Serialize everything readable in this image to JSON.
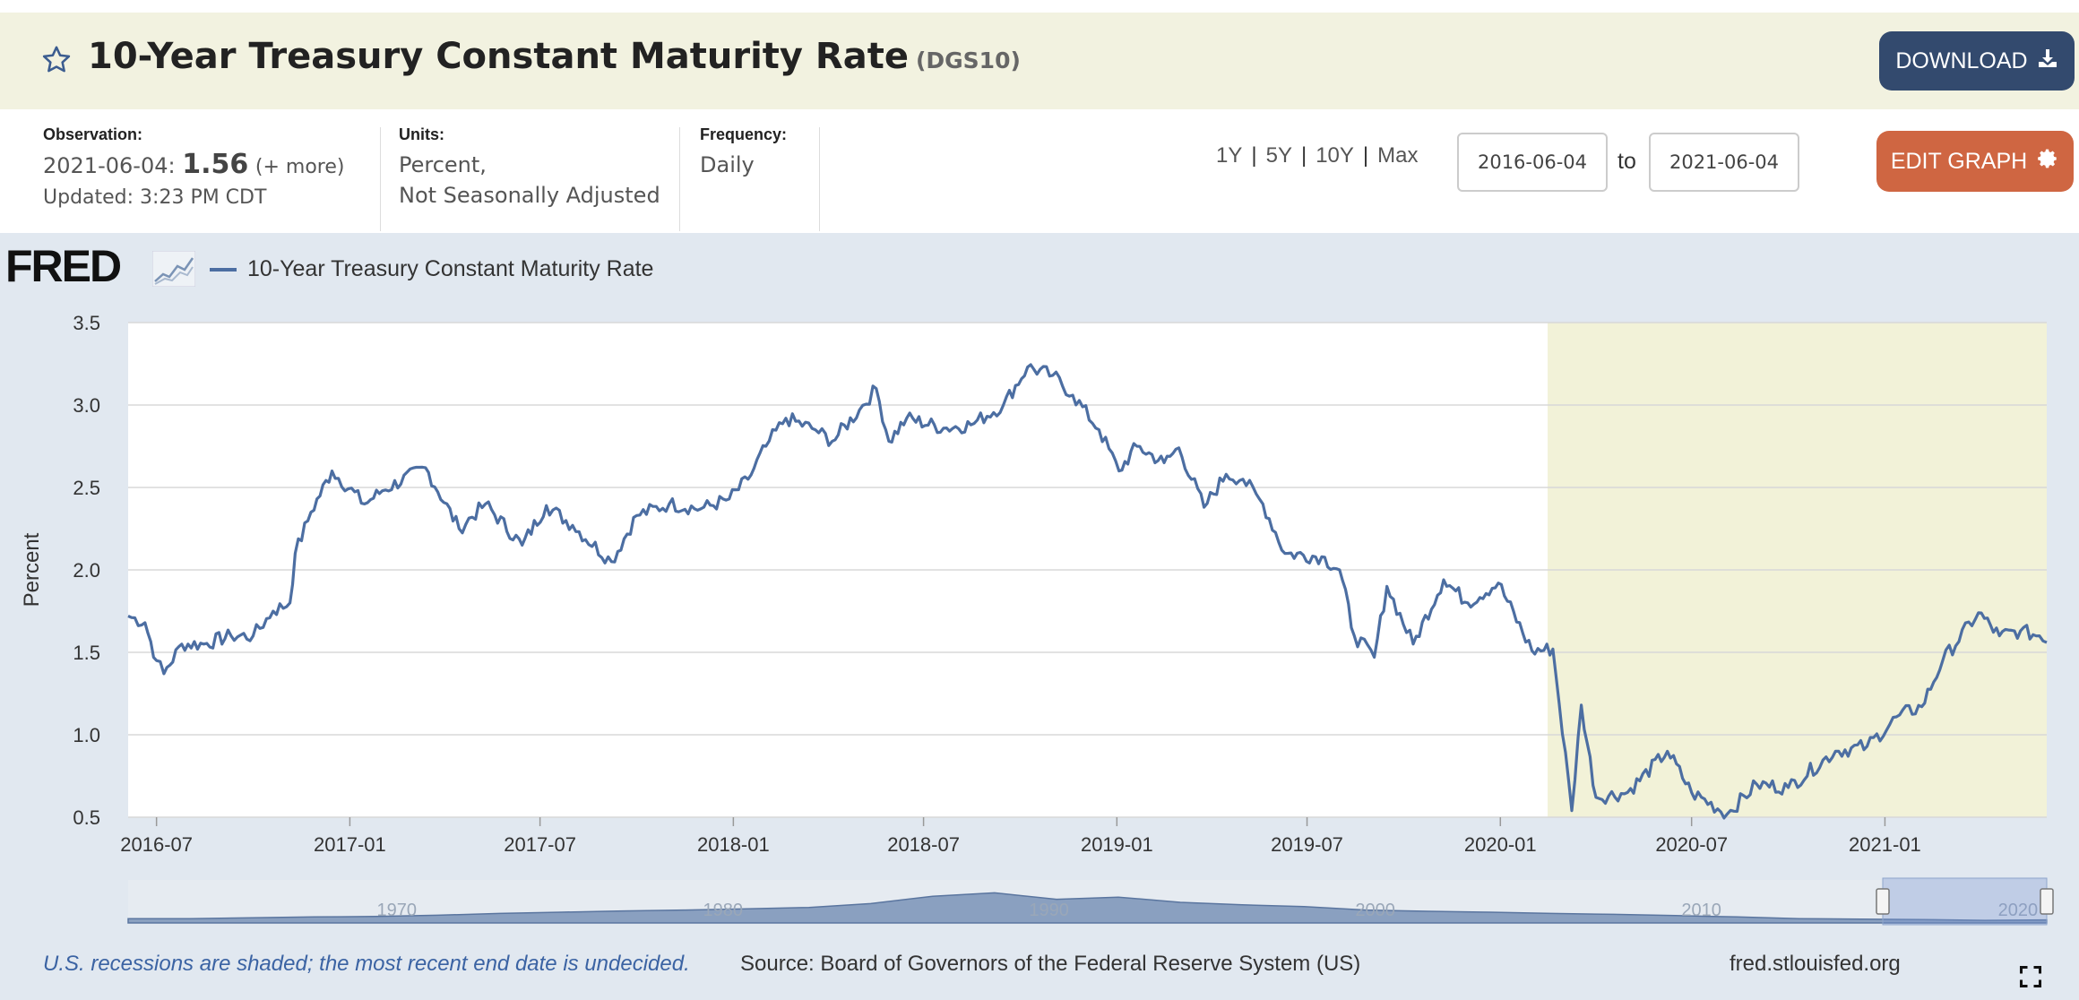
{
  "header": {
    "title": "10-Year Treasury Constant Maturity Rate",
    "series_id": "(DGS10)",
    "download_label": "DOWNLOAD"
  },
  "meta": {
    "observation_label": "Observation:",
    "observation_date": "2021-06-04:",
    "observation_value": "1.56",
    "observation_more": "(+ more)",
    "updated": "Updated: 3:23 PM CDT",
    "units_label": "Units:",
    "units_line1": "Percent,",
    "units_line2": "Not Seasonally Adjusted",
    "frequency_label": "Frequency:",
    "frequency_value": "Daily"
  },
  "controls": {
    "range_links": [
      "1Y",
      "5Y",
      "10Y",
      "Max"
    ],
    "date_from": "2016-06-04",
    "to_label": "to",
    "date_to": "2021-06-04",
    "edit_label": "EDIT GRAPH"
  },
  "graph": {
    "logo": "FRED",
    "legend_label": "10-Year Treasury Constant Maturity Rate",
    "navigator_labels": [
      "1970",
      "1980",
      "1990",
      "2000",
      "2010",
      "2020"
    ]
  },
  "footer": {
    "recession_note": "U.S. recessions are shaded; the most recent end date is undecided.",
    "source": "Source: Board of Governors of the Federal Reserve System (US)",
    "site": "fred.stlouisfed.org"
  },
  "colors": {
    "line": "#4c6ea2",
    "recession_shade": "#f2f2d8",
    "download_button": "#334a6e",
    "edit_button": "#cf6642"
  },
  "chart_data": {
    "type": "line",
    "ylabel": "Percent",
    "xlabel": "",
    "ylim": [
      0.5,
      3.5
    ],
    "y_ticks": [
      "3.5",
      "3.0",
      "2.5",
      "2.0",
      "1.5",
      "1.0",
      "0.5"
    ],
    "x_range": [
      "2016-06-04",
      "2021-06-04"
    ],
    "x_ticks": [
      "2016-07",
      "2017-01",
      "2017-07",
      "2018-01",
      "2018-07",
      "2019-01",
      "2019-07",
      "2020-01",
      "2020-07",
      "2021-01"
    ],
    "grid": true,
    "recession_shading": [
      [
        "2020-02-15",
        "2021-06-04"
      ]
    ],
    "series": [
      {
        "name": "10-Year Treasury Constant Maturity Rate",
        "points": [
          [
            "2016-06-04",
            1.72
          ],
          [
            "2016-06-20",
            1.68
          ],
          [
            "2016-07-01",
            1.45
          ],
          [
            "2016-07-08",
            1.37
          ],
          [
            "2016-07-25",
            1.55
          ],
          [
            "2016-08-15",
            1.55
          ],
          [
            "2016-09-10",
            1.6
          ],
          [
            "2016-10-01",
            1.6
          ],
          [
            "2016-10-20",
            1.75
          ],
          [
            "2016-11-05",
            1.8
          ],
          [
            "2016-11-10",
            2.1
          ],
          [
            "2016-11-25",
            2.35
          ],
          [
            "2016-12-15",
            2.6
          ],
          [
            "2017-01-15",
            2.4
          ],
          [
            "2017-02-01",
            2.48
          ],
          [
            "2017-03-14",
            2.62
          ],
          [
            "2017-04-15",
            2.25
          ],
          [
            "2017-05-10",
            2.4
          ],
          [
            "2017-06-14",
            2.15
          ],
          [
            "2017-07-07",
            2.39
          ],
          [
            "2017-08-01",
            2.27
          ],
          [
            "2017-09-07",
            2.05
          ],
          [
            "2017-10-01",
            2.33
          ],
          [
            "2017-11-01",
            2.4
          ],
          [
            "2017-12-01",
            2.37
          ],
          [
            "2017-12-28",
            2.43
          ],
          [
            "2018-01-15",
            2.55
          ],
          [
            "2018-02-01",
            2.75
          ],
          [
            "2018-02-20",
            2.92
          ],
          [
            "2018-03-20",
            2.85
          ],
          [
            "2018-04-05",
            2.78
          ],
          [
            "2018-05-01",
            2.97
          ],
          [
            "2018-05-17",
            3.1
          ],
          [
            "2018-05-29",
            2.78
          ],
          [
            "2018-06-15",
            2.92
          ],
          [
            "2018-07-20",
            2.86
          ],
          [
            "2018-08-15",
            2.88
          ],
          [
            "2018-09-15",
            3.0
          ],
          [
            "2018-10-08",
            3.23
          ],
          [
            "2018-11-01",
            3.18
          ],
          [
            "2018-11-20",
            3.06
          ],
          [
            "2018-12-15",
            2.85
          ],
          [
            "2019-01-03",
            2.6
          ],
          [
            "2019-01-20",
            2.75
          ],
          [
            "2019-02-15",
            2.65
          ],
          [
            "2019-03-01",
            2.74
          ],
          [
            "2019-03-25",
            2.38
          ],
          [
            "2019-04-15",
            2.58
          ],
          [
            "2019-05-01",
            2.55
          ],
          [
            "2019-05-20",
            2.4
          ],
          [
            "2019-06-10",
            2.1
          ],
          [
            "2019-07-15",
            2.08
          ],
          [
            "2019-08-01",
            2.0
          ],
          [
            "2019-08-15",
            1.6
          ],
          [
            "2019-09-03",
            1.47
          ],
          [
            "2019-09-15",
            1.9
          ],
          [
            "2019-10-10",
            1.55
          ],
          [
            "2019-11-08",
            1.94
          ],
          [
            "2019-12-01",
            1.8
          ],
          [
            "2019-12-30",
            1.92
          ],
          [
            "2020-01-31",
            1.51
          ],
          [
            "2020-02-20",
            1.52
          ],
          [
            "2020-03-09",
            0.54
          ],
          [
            "2020-03-18",
            1.18
          ],
          [
            "2020-04-01",
            0.62
          ],
          [
            "2020-05-01",
            0.65
          ],
          [
            "2020-06-08",
            0.9
          ],
          [
            "2020-07-01",
            0.65
          ],
          [
            "2020-08-04",
            0.52
          ],
          [
            "2020-09-01",
            0.7
          ],
          [
            "2020-10-01",
            0.68
          ],
          [
            "2020-11-15",
            0.9
          ],
          [
            "2020-12-15",
            0.93
          ],
          [
            "2021-01-15",
            1.12
          ],
          [
            "2021-02-05",
            1.17
          ],
          [
            "2021-02-25",
            1.45
          ],
          [
            "2021-03-31",
            1.74
          ],
          [
            "2021-04-20",
            1.6
          ],
          [
            "2021-05-10",
            1.63
          ],
          [
            "2021-05-28",
            1.6
          ],
          [
            "2021-06-04",
            1.56
          ]
        ]
      }
    ]
  }
}
